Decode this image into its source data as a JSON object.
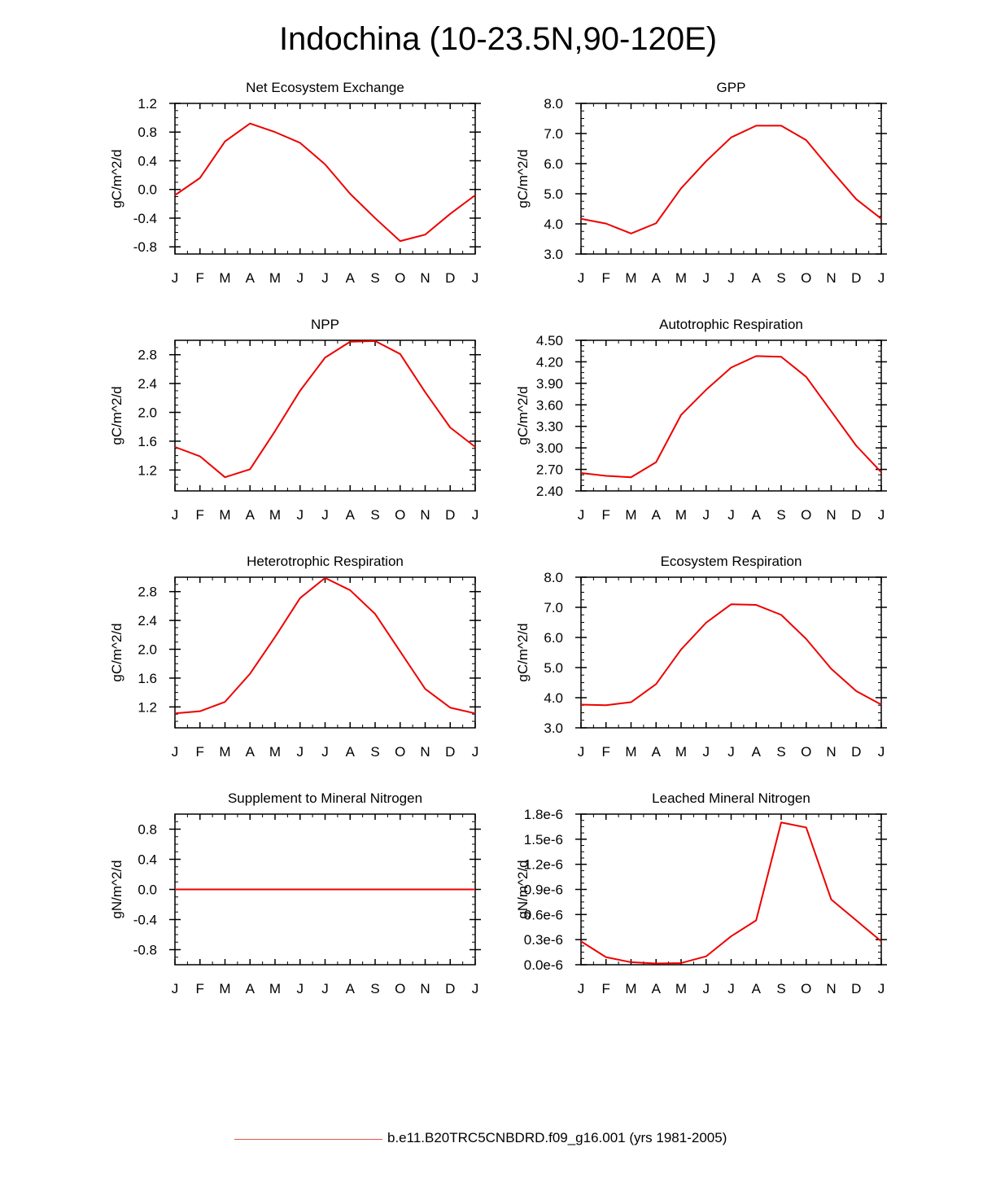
{
  "title": "Indochina (10-23.5N,90-120E)",
  "legend": {
    "label": "b.e11.B20TRC5CNBDRD.f09_g16.001 (yrs 1981-2005)",
    "color": "#e6534b"
  },
  "line_color": "#ee0000",
  "chart_data": [
    {
      "type": "line",
      "title": "Net Ecosystem Exchange",
      "ylabel": "gC/m^2/d",
      "categories": [
        "J",
        "F",
        "M",
        "A",
        "M",
        "J",
        "J",
        "A",
        "S",
        "O",
        "N",
        "D",
        "J"
      ],
      "ylim": [
        -0.9,
        1.2
      ],
      "yticks": [
        -0.8,
        -0.4,
        0.0,
        0.4,
        0.8,
        1.2
      ],
      "ytick_labels": [
        "-0.8",
        "-0.4",
        "0.0",
        "0.4",
        "0.8",
        "1.2"
      ],
      "values": [
        -0.08,
        0.16,
        0.67,
        0.92,
        0.8,
        0.65,
        0.35,
        -0.06,
        -0.4,
        -0.72,
        -0.63,
        -0.34,
        -0.08
      ]
    },
    {
      "type": "line",
      "title": "GPP",
      "ylabel": "gC/m^2/d",
      "categories": [
        "J",
        "F",
        "M",
        "A",
        "M",
        "J",
        "J",
        "A",
        "S",
        "O",
        "N",
        "D",
        "J"
      ],
      "ylim": [
        3.0,
        8.0
      ],
      "yticks": [
        3.0,
        4.0,
        5.0,
        6.0,
        7.0,
        8.0
      ],
      "ytick_labels": [
        "3.0",
        "4.0",
        "5.0",
        "6.0",
        "7.0",
        "8.0"
      ],
      "values": [
        4.17,
        4.01,
        3.68,
        4.02,
        5.18,
        6.08,
        6.87,
        7.26,
        7.26,
        6.78,
        5.78,
        4.82,
        4.17
      ]
    },
    {
      "type": "line",
      "title": "NPP",
      "ylabel": "gC/m^2/d",
      "categories": [
        "J",
        "F",
        "M",
        "A",
        "M",
        "J",
        "J",
        "A",
        "S",
        "O",
        "N",
        "D",
        "J"
      ],
      "ylim": [
        0.91,
        3.0
      ],
      "yticks": [
        1.2,
        1.6,
        2.0,
        2.4,
        2.8
      ],
      "ytick_labels": [
        "1.2",
        "1.6",
        "2.0",
        "2.4",
        "2.8"
      ],
      "values": [
        1.52,
        1.39,
        1.1,
        1.21,
        1.74,
        2.3,
        2.76,
        2.98,
        2.99,
        2.81,
        2.28,
        1.79,
        1.52
      ]
    },
    {
      "type": "line",
      "title": "Autotrophic Respiration",
      "ylabel": "gC/m^2/d",
      "categories": [
        "J",
        "F",
        "M",
        "A",
        "M",
        "J",
        "J",
        "A",
        "S",
        "O",
        "N",
        "D",
        "J"
      ],
      "ylim": [
        2.4,
        4.5
      ],
      "yticks": [
        2.4,
        2.7,
        3.0,
        3.3,
        3.6,
        3.9,
        4.2,
        4.5
      ],
      "ytick_labels": [
        "2.40",
        "2.70",
        "3.00",
        "3.30",
        "3.60",
        "3.90",
        "4.20",
        "4.50"
      ],
      "values": [
        2.65,
        2.61,
        2.59,
        2.8,
        3.46,
        3.81,
        4.12,
        4.28,
        4.27,
        3.99,
        3.51,
        3.03,
        2.66
      ]
    },
    {
      "type": "line",
      "title": "Heterotrophic Respiration",
      "ylabel": "gC/m^2/d",
      "categories": [
        "J",
        "F",
        "M",
        "A",
        "M",
        "J",
        "J",
        "A",
        "S",
        "O",
        "N",
        "D",
        "J"
      ],
      "ylim": [
        0.91,
        3.0
      ],
      "yticks": [
        1.2,
        1.6,
        2.0,
        2.4,
        2.8
      ],
      "ytick_labels": [
        "1.2",
        "1.6",
        "2.0",
        "2.4",
        "2.8"
      ],
      "values": [
        1.11,
        1.14,
        1.27,
        1.66,
        2.17,
        2.71,
        2.99,
        2.82,
        2.49,
        1.97,
        1.45,
        1.19,
        1.11
      ]
    },
    {
      "type": "line",
      "title": "Ecosystem Respiration",
      "ylabel": "gC/m^2/d",
      "categories": [
        "J",
        "F",
        "M",
        "A",
        "M",
        "J",
        "J",
        "A",
        "S",
        "O",
        "N",
        "D",
        "J"
      ],
      "ylim": [
        3.0,
        8.0
      ],
      "yticks": [
        3.0,
        4.0,
        5.0,
        6.0,
        7.0,
        8.0
      ],
      "ytick_labels": [
        "3.0",
        "4.0",
        "5.0",
        "6.0",
        "7.0",
        "8.0"
      ],
      "values": [
        3.77,
        3.75,
        3.85,
        4.45,
        5.6,
        6.49,
        7.1,
        7.08,
        6.75,
        5.95,
        4.96,
        4.22,
        3.77
      ]
    },
    {
      "type": "line",
      "title": "Supplement to Mineral Nitrogen",
      "ylabel": "gN/m^2/d",
      "categories": [
        "J",
        "F",
        "M",
        "A",
        "M",
        "J",
        "J",
        "A",
        "S",
        "O",
        "N",
        "D",
        "J"
      ],
      "ylim": [
        -1.0,
        1.0
      ],
      "yticks": [
        -0.8,
        -0.4,
        0.0,
        0.4,
        0.8
      ],
      "ytick_labels": [
        "-0.8",
        "-0.4",
        "0.0",
        "0.4",
        "0.8"
      ],
      "values": [
        0,
        0,
        0,
        0,
        0,
        0,
        0,
        0,
        0,
        0,
        0,
        0,
        0
      ]
    },
    {
      "type": "line",
      "title": "Leached Mineral Nitrogen",
      "ylabel": "gN/m^2/d",
      "categories": [
        "J",
        "F",
        "M",
        "A",
        "M",
        "J",
        "J",
        "A",
        "S",
        "O",
        "N",
        "D",
        "J"
      ],
      "ylim": [
        0,
        1.8e-06
      ],
      "yticks": [
        0,
        3e-07,
        6e-07,
        9e-07,
        1.2e-06,
        1.5e-06,
        1.8e-06
      ],
      "ytick_labels": [
        "0.0e-6",
        "0.3e-6",
        "0.6e-6",
        "0.9e-6",
        "1.2e-6",
        "1.5e-6",
        "1.8e-6"
      ],
      "values": [
        2.8e-07,
        9e-08,
        3e-08,
        1.5e-08,
        2e-08,
        1e-07,
        3.4e-07,
        5.3e-07,
        1.7e-06,
        1.64e-06,
        7.8e-07,
        5.3e-07,
        2.8e-07
      ]
    }
  ]
}
